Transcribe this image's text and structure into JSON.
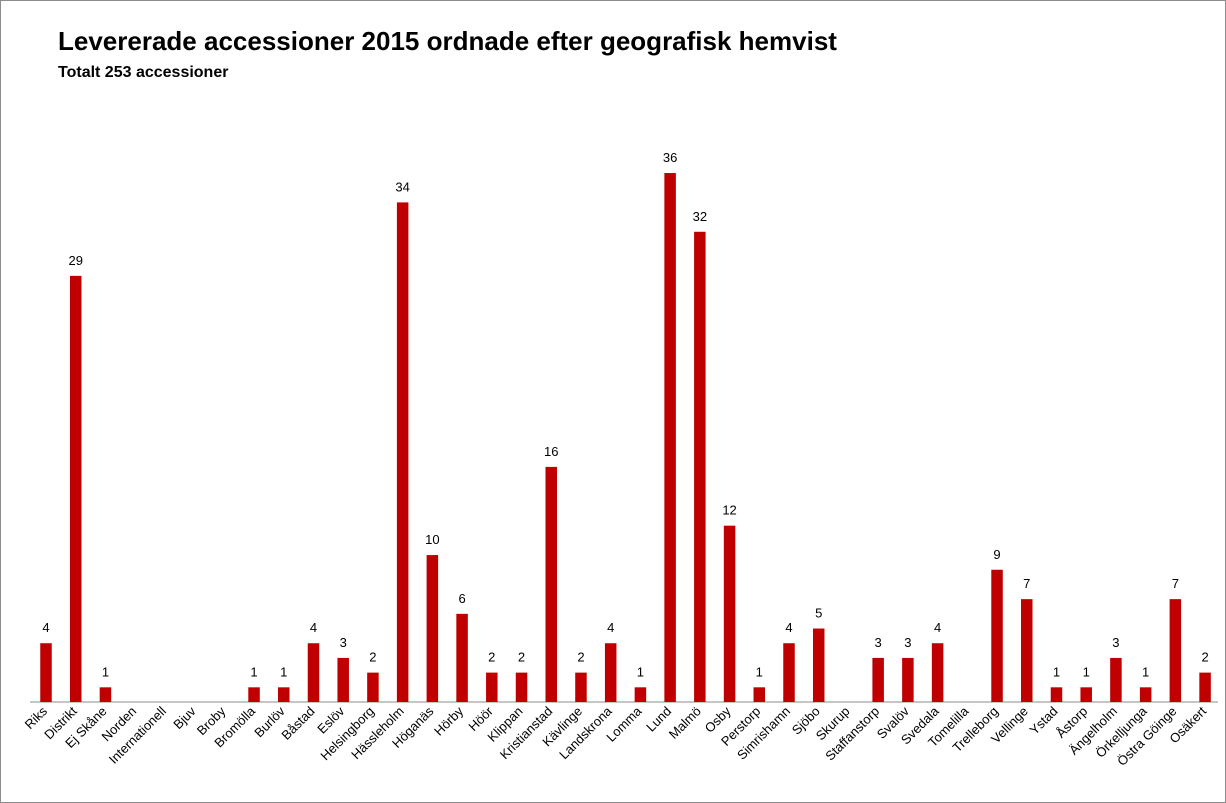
{
  "chart_data": {
    "type": "bar",
    "title": "Levererade accessioner 2015 ordnade efter geografisk hemvist",
    "subtitle": "Totalt 253 accessioner",
    "categories": [
      "Riks",
      "Distrikt",
      "Ej Skåne",
      "Norden",
      "Internationell",
      "Bjuv",
      "Broby",
      "Bromölla",
      "Burlöv",
      "Båstad",
      "Eslöv",
      "Helsingborg",
      "Hässleholm",
      "Höganäs",
      "Hörby",
      "Höör",
      "Klippan",
      "Kristianstad",
      "Kävlinge",
      "Landskrona",
      "Lomma",
      "Lund",
      "Malmö",
      "Osby",
      "Perstorp",
      "Simrishamn",
      "Sjöbo",
      "Skurup",
      "Staffanstorp",
      "Svalöv",
      "Svedala",
      "Tomelilla",
      "Trelleborg",
      "Vellinge",
      "Ystad",
      "Åstorp",
      "Ängelholm",
      "Örkelljunga",
      "Östra Göinge",
      "Osäkert"
    ],
    "values": [
      4,
      29,
      1,
      null,
      null,
      null,
      null,
      1,
      1,
      4,
      3,
      2,
      34,
      10,
      6,
      2,
      2,
      16,
      2,
      4,
      1,
      36,
      32,
      12,
      1,
      4,
      5,
      null,
      3,
      3,
      4,
      null,
      9,
      7,
      1,
      1,
      3,
      1,
      7,
      2
    ],
    "bar_color": "#C00000",
    "ylim": [
      0,
      36
    ],
    "grid": false,
    "legend": "none",
    "xlabel": "",
    "ylabel": ""
  }
}
